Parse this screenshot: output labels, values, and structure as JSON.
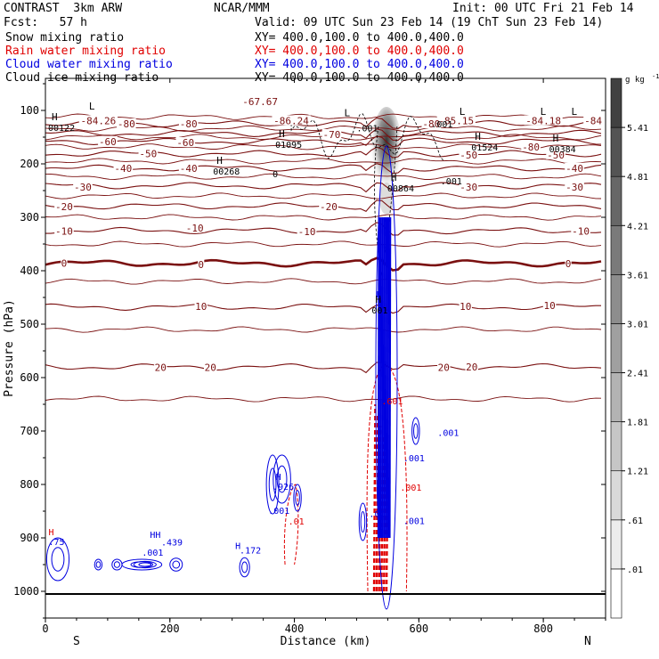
{
  "header": {
    "model": "CONTRAST  3km ARW",
    "org": "NCAR/MMM",
    "init": "Init: 00 UTC Fri 21 Feb 14",
    "fcst": "Fcst:   57 h",
    "valid": "Valid: 09 UTC Sun 23 Feb 14 (19 ChT Sun 23 Feb 14)"
  },
  "fields": [
    {
      "name": "Snow mixing ratio",
      "xy": "XY= 400.0,100.0 to 400.0,400.0",
      "color": "#000000"
    },
    {
      "name": "Rain water mixing ratio",
      "xy": "XY= 400.0,100.0 to 400.0,400.0",
      "color": "#e00000"
    },
    {
      "name": "Cloud water mixing ratio",
      "xy": "XY= 400.0,100.0 to 400.0,400.0",
      "color": "#0000e0"
    },
    {
      "name": "Cloud ice mixing ratio",
      "xy": "XY= 400.0,100.0 to 400.0,400.0",
      "color": "#000000"
    }
  ],
  "chart_data": {
    "type": "heatmap",
    "xlabel": "Distance (km)",
    "ylabel": "Pressure (hPa)",
    "xlim": [
      0,
      900
    ],
    "ylim": [
      1050,
      40
    ],
    "x_ticks": [
      0,
      200,
      400,
      600,
      800
    ],
    "y_ticks": [
      100,
      200,
      300,
      400,
      500,
      600,
      700,
      800,
      900,
      1000
    ],
    "x_end_labels": {
      "left": "S",
      "right": "N"
    },
    "colorbar": {
      "unit": "g kg",
      "unit_exp": "-1",
      "levels": [
        ".01",
        ".61",
        "1.21",
        "1.81",
        "2.41",
        "3.01",
        "3.61",
        "4.21",
        "4.81",
        "5.41"
      ]
    },
    "temperature_contours": [
      {
        "value": -80,
        "p": 125
      },
      {
        "value": -70,
        "p": 143
      },
      {
        "value": -60,
        "p": 158
      },
      {
        "value": -50,
        "p": 181
      },
      {
        "value": -40,
        "p": 208
      },
      {
        "value": -30,
        "p": 241
      },
      {
        "value": -20,
        "p": 279
      },
      {
        "value": -10,
        "p": 325
      },
      {
        "value": 0,
        "p": 386,
        "bold": true
      },
      {
        "value": 10,
        "p": 468
      },
      {
        "value": 20,
        "p": 580
      }
    ],
    "temperature_labels": [
      {
        "text": "-84.26",
        "x": 85,
        "p": 119
      },
      {
        "text": "-67.67",
        "x": 345,
        "p": 83
      },
      {
        "text": "-86.24",
        "x": 395,
        "p": 119
      },
      {
        "text": "-85.15",
        "x": 660,
        "p": 119
      },
      {
        "text": "-84.18",
        "x": 800,
        "p": 119
      },
      {
        "text": "-84",
        "x": 880,
        "p": 119
      },
      {
        "text": "-80",
        "x": 130,
        "p": 125
      },
      {
        "text": "-80",
        "x": 230,
        "p": 125
      },
      {
        "text": "-80",
        "x": 620,
        "p": 125
      },
      {
        "text": "-80",
        "x": 780,
        "p": 168
      },
      {
        "text": "-70",
        "x": 460,
        "p": 145
      },
      {
        "text": "-60",
        "x": 100,
        "p": 158
      },
      {
        "text": "-60",
        "x": 225,
        "p": 160
      },
      {
        "text": "-50",
        "x": 165,
        "p": 181
      },
      {
        "text": "-50",
        "x": 680,
        "p": 183
      },
      {
        "text": "-50",
        "x": 820,
        "p": 183
      },
      {
        "text": "-40",
        "x": 125,
        "p": 208
      },
      {
        "text": "-40",
        "x": 230,
        "p": 208
      },
      {
        "text": "-40",
        "x": 850,
        "p": 208
      },
      {
        "text": "-30",
        "x": 60,
        "p": 243
      },
      {
        "text": "-30",
        "x": 680,
        "p": 243
      },
      {
        "text": "-30",
        "x": 850,
        "p": 243
      },
      {
        "text": "-20",
        "x": 30,
        "p": 280
      },
      {
        "text": "-20",
        "x": 455,
        "p": 280
      },
      {
        "text": "-10",
        "x": 30,
        "p": 326
      },
      {
        "text": "-10",
        "x": 240,
        "p": 320
      },
      {
        "text": "-10",
        "x": 420,
        "p": 327
      },
      {
        "text": "-10",
        "x": 860,
        "p": 326
      },
      {
        "text": "0",
        "x": 30,
        "p": 386
      },
      {
        "text": "0",
        "x": 250,
        "p": 388
      },
      {
        "text": "0",
        "x": 840,
        "p": 387
      },
      {
        "text": "10",
        "x": 250,
        "p": 467
      },
      {
        "text": "10",
        "x": 675,
        "p": 467
      },
      {
        "text": "10",
        "x": 810,
        "p": 465
      },
      {
        "text": "20",
        "x": 185,
        "p": 581
      },
      {
        "text": "20",
        "x": 265,
        "p": 581
      },
      {
        "text": "20",
        "x": 640,
        "p": 581
      },
      {
        "text": "20",
        "x": 685,
        "p": 580
      }
    ],
    "extrema_labels": [
      {
        "mark": "L",
        "x": 70,
        "p": 98
      },
      {
        "mark": "H",
        "x": 10,
        "p": 118,
        "value": "00122"
      },
      {
        "mark": "H",
        "x": 275,
        "p": 200,
        "value": "00268"
      },
      {
        "mark": "H",
        "x": 375,
        "p": 150,
        "value": "01095"
      },
      {
        "mark": "L",
        "x": 480,
        "p": 111
      },
      {
        "mark": "H",
        "x": 555,
        "p": 232,
        "value": "00864"
      },
      {
        "mark": "H",
        "x": 690,
        "p": 155,
        "value": "01524"
      },
      {
        "mark": "H",
        "x": 815,
        "p": 158,
        "value": "00384"
      },
      {
        "mark": "L",
        "x": 795,
        "p": 108
      },
      {
        "mark": "L",
        "x": 845,
        "p": 108
      },
      {
        "mark": "L",
        "x": 665,
        "p": 108
      },
      {
        "mark": "H",
        "x": 530,
        "p": 460,
        "value": "001"
      }
    ],
    "hydrometeor_labels": [
      {
        "text": ".001",
        "x": 500,
        "p": 139,
        "color": "#000000"
      },
      {
        "text": ".001",
        "x": 620,
        "p": 132,
        "color": "#000000"
      },
      {
        "text": ".001",
        "x": 635,
        "p": 238,
        "color": "#000000"
      },
      {
        "text": "0",
        "x": 365,
        "p": 225,
        "color": "#000000"
      },
      {
        "text": ".001",
        "x": 630,
        "p": 709,
        "color": "#0000e0"
      },
      {
        "text": ".001",
        "x": 575,
        "p": 757,
        "color": "#0000e0"
      },
      {
        "text": ".001",
        "x": 358,
        "p": 855,
        "color": "#0000e0"
      },
      {
        "text": ".001",
        "x": 155,
        "p": 933,
        "color": "#0000e0"
      },
      {
        "text": ".001",
        "x": 520,
        "p": 861,
        "color": "#0000e0"
      },
      {
        "text": ".001",
        "x": 575,
        "p": 874,
        "color": "#0000e0"
      },
      {
        "text": ".439",
        "x": 186,
        "p": 914,
        "color": "#0000e0"
      },
      {
        "text": ".172",
        "x": 312,
        "p": 929,
        "color": "#0000e0"
      },
      {
        "text": ".75",
        "x": 5,
        "p": 913,
        "color": "#0000e0"
      },
      {
        "text": ".926",
        "x": 365,
        "p": 810,
        "color": "#0000e0"
      },
      {
        "text": ".601",
        "x": 540,
        "p": 650,
        "color": "#e00000"
      },
      {
        "text": ".01",
        "x": 390,
        "p": 875,
        "color": "#e00000"
      },
      {
        "text": ".001",
        "x": 570,
        "p": 812,
        "color": "#e00000"
      },
      {
        "text": "HH",
        "x": 168,
        "p": 900,
        "color": "#0000e0"
      },
      {
        "text": "H",
        "x": 305,
        "p": 921,
        "color": "#0000e0"
      },
      {
        "text": "H",
        "x": 5,
        "p": 895,
        "color": "#e00000"
      },
      {
        "text": "H",
        "x": 532,
        "p": 450,
        "color": "#0000e0"
      },
      {
        "text": "H",
        "x": 370,
        "p": 792,
        "color": "#0000e0"
      }
    ]
  }
}
